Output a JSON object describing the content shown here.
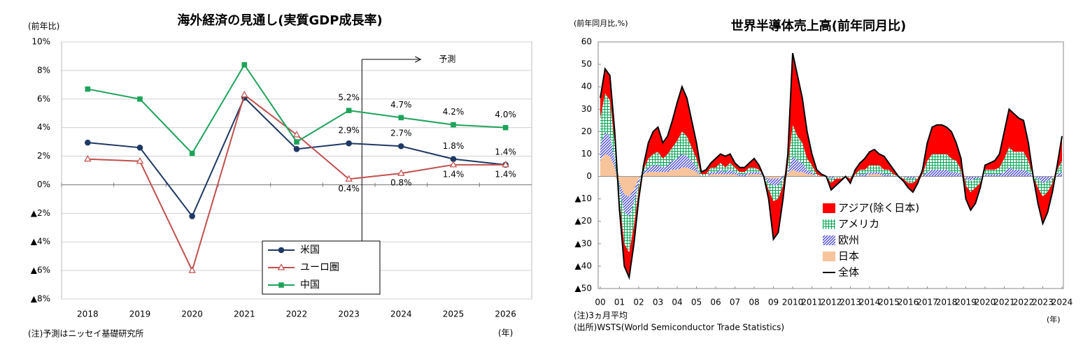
{
  "chart_data": [
    {
      "type": "line",
      "title": "海外経済の見通し(実質GDP成長率)",
      "y_label": "(前年比)",
      "x_label": "(年)",
      "note": "(注)予測はニッセイ基礎研究所",
      "annotation": "予測",
      "categories": [
        "2018",
        "2019",
        "2020",
        "2021",
        "2022",
        "2023",
        "2024",
        "2025",
        "2026"
      ],
      "ylim": [
        -8,
        10
      ],
      "yticks": [
        {
          "value": -8,
          "label": "▲8%"
        },
        {
          "value": -6,
          "label": "▲6%"
        },
        {
          "value": -4,
          "label": "▲4%"
        },
        {
          "value": -2,
          "label": "▲2%"
        },
        {
          "value": 0,
          "label": "0%"
        },
        {
          "value": 2,
          "label": "2%"
        },
        {
          "value": 4,
          "label": "4%"
        },
        {
          "value": 6,
          "label": "6%"
        },
        {
          "value": 8,
          "label": "8%"
        },
        {
          "value": 10,
          "label": "10%"
        }
      ],
      "grid": true,
      "legend": "lower center",
      "series": [
        {
          "name": "米国",
          "color": "#1f3864",
          "marker": "circle",
          "values": [
            2.95,
            2.6,
            -2.2,
            6.1,
            2.5,
            2.9,
            2.7,
            1.8,
            1.4
          ],
          "value_labels": [
            null,
            null,
            null,
            null,
            null,
            "2.9%",
            "2.7%",
            "1.8%",
            "1.4%"
          ]
        },
        {
          "name": "ユーロ圏",
          "color": "#c0504d",
          "marker": "triangle-open",
          "values": [
            1.8,
            1.65,
            -6.0,
            6.3,
            3.5,
            0.4,
            0.8,
            1.4,
            1.4
          ],
          "value_labels": [
            null,
            null,
            null,
            null,
            null,
            "0.4%",
            "0.8%",
            "1.4%",
            "1.4%"
          ]
        },
        {
          "name": "中国",
          "color": "#1ea35a",
          "marker": "square",
          "values": [
            6.7,
            6.0,
            2.2,
            8.4,
            3.0,
            5.2,
            4.7,
            4.2,
            4.0
          ],
          "value_labels": [
            null,
            null,
            null,
            null,
            null,
            "5.2%",
            "4.7%",
            "4.2%",
            "4.0%"
          ]
        }
      ]
    },
    {
      "type": "stacked_area",
      "title": "世界半導体売上高(前年同月比)",
      "y_label": "(前年同月比,%)",
      "x_label": "(年)",
      "notes": [
        "(注)3ヵ月平均",
        "(出所)WSTS(World Semiconductor Trade Statistics)"
      ],
      "xlim": [
        2000,
        2024
      ],
      "ylim": [
        -50,
        60
      ],
      "xticks": [
        {
          "value": 2000,
          "label": "00"
        },
        {
          "value": 2001,
          "label": "01"
        },
        {
          "value": 2002,
          "label": "02"
        },
        {
          "value": 2003,
          "label": "03"
        },
        {
          "value": 2004,
          "label": "04"
        },
        {
          "value": 2005,
          "label": "05"
        },
        {
          "value": 2006,
          "label": "06"
        },
        {
          "value": 2007,
          "label": "07"
        },
        {
          "value": 2008,
          "label": "08"
        },
        {
          "value": 2009,
          "label": "09"
        },
        2010,
        2011,
        2012,
        2013,
        2014,
        2015,
        2016,
        2017,
        2018,
        2019,
        2020,
        2021,
        2022,
        2023,
        2024
      ],
      "yticks": [
        {
          "value": -50,
          "label": "▲50"
        },
        {
          "value": -40,
          "label": "▲40"
        },
        {
          "value": -30,
          "label": "▲30"
        },
        {
          "value": -20,
          "label": "▲20"
        },
        {
          "value": -10,
          "label": "▲10"
        },
        0,
        10,
        20,
        30,
        40,
        50,
        60
      ],
      "legend": "lower center",
      "x": [
        2000,
        2000.25,
        2000.5,
        2000.75,
        2001,
        2001.25,
        2001.5,
        2001.75,
        2002,
        2002.25,
        2002.5,
        2002.75,
        2003,
        2003.25,
        2003.5,
        2003.75,
        2004,
        2004.25,
        2004.5,
        2004.75,
        2005,
        2005.25,
        2005.5,
        2005.75,
        2006,
        2006.25,
        2006.5,
        2006.75,
        2007,
        2007.25,
        2007.5,
        2007.75,
        2008,
        2008.25,
        2008.5,
        2008.75,
        2009,
        2009.25,
        2009.5,
        2009.75,
        2010,
        2010.25,
        2010.5,
        2010.75,
        2011,
        2011.25,
        2011.5,
        2011.75,
        2012,
        2012.25,
        2012.5,
        2012.75,
        2013,
        2013.25,
        2013.5,
        2013.75,
        2014,
        2014.25,
        2014.5,
        2014.75,
        2015,
        2015.25,
        2015.5,
        2015.75,
        2016,
        2016.25,
        2016.5,
        2016.75,
        2017,
        2017.25,
        2017.5,
        2017.75,
        2018,
        2018.25,
        2018.5,
        2018.75,
        2019,
        2019.25,
        2019.5,
        2019.75,
        2020,
        2020.25,
        2020.5,
        2020.75,
        2021,
        2021.25,
        2021.5,
        2021.75,
        2022,
        2022.25,
        2022.5,
        2022.75,
        2023,
        2023.25,
        2023.5,
        2023.75,
        2024
      ],
      "series": [
        {
          "name": "アジア(除く日本)",
          "color": "#ff0000",
          "pattern": "solid",
          "values": [
            9,
            11,
            11,
            5,
            -4,
            -10,
            -11,
            -8,
            -4,
            2,
            7,
            10,
            11,
            7,
            8,
            12,
            17,
            20,
            17,
            12,
            7,
            1,
            2,
            2,
            4,
            4,
            5,
            4,
            2,
            2,
            2,
            2,
            4,
            2,
            0,
            -4,
            -17,
            -15,
            -6,
            5,
            32,
            27,
            20,
            12,
            5,
            2,
            1,
            0,
            -3,
            -3,
            -1,
            0,
            -2,
            2,
            3,
            5,
            6,
            7,
            5,
            6,
            3,
            2,
            0,
            -1,
            -2,
            -4,
            -2,
            2,
            8,
            12,
            13,
            13,
            12,
            12,
            8,
            5,
            -6,
            -8,
            -7,
            -2,
            2,
            3,
            4,
            6,
            12,
            17,
            17,
            15,
            14,
            8,
            0,
            -7,
            -12,
            -9,
            -4,
            2,
            11
          ]
        },
        {
          "name": "アメリカ",
          "color": "#00a651",
          "pattern": "grid",
          "values": [
            12,
            17,
            16,
            7,
            -5,
            -14,
            -16,
            -10,
            -3,
            1,
            4,
            5,
            6,
            4,
            5,
            6,
            8,
            10,
            9,
            6,
            4,
            1,
            1,
            2,
            2,
            3,
            2,
            3,
            2,
            1,
            1,
            2,
            2,
            1,
            0,
            -3,
            -7,
            -6,
            -3,
            3,
            14,
            11,
            9,
            5,
            3,
            1,
            0,
            0,
            -2,
            -1,
            -1,
            0,
            -1,
            1,
            2,
            2,
            3,
            3,
            3,
            2,
            2,
            1,
            0,
            -1,
            -2,
            -2,
            -1,
            1,
            5,
            7,
            7,
            7,
            7,
            6,
            5,
            2,
            -3,
            -5,
            -4,
            -2,
            2,
            2,
            2,
            3,
            6,
            9,
            8,
            8,
            8,
            5,
            0,
            -4,
            -6,
            -5,
            -2,
            2,
            5
          ]
        },
        {
          "name": "欧州",
          "color": "#3b3bd4",
          "pattern": "diagonal",
          "values": [
            7,
            10,
            9,
            4,
            -3,
            -8,
            -9,
            -6,
            -2,
            1,
            2,
            3,
            3,
            2,
            3,
            4,
            5,
            6,
            5,
            4,
            2,
            0,
            0,
            1,
            1,
            2,
            1,
            2,
            1,
            1,
            1,
            1,
            1,
            1,
            0,
            -2,
            -3,
            -3,
            -1,
            1,
            6,
            5,
            4,
            2,
            1,
            0,
            0,
            0,
            -1,
            0,
            0,
            0,
            0,
            0,
            1,
            1,
            1,
            1,
            1,
            1,
            1,
            0,
            0,
            0,
            -1,
            -1,
            0,
            0,
            2,
            3,
            3,
            3,
            3,
            2,
            2,
            1,
            -1,
            -2,
            -1,
            -1,
            1,
            1,
            1,
            1,
            2,
            4,
            3,
            3,
            3,
            2,
            0,
            -1,
            -3,
            -2,
            -1,
            1,
            2
          ]
        },
        {
          "name": "日本",
          "color": "#f8c49c",
          "pattern": "solid",
          "values": [
            7,
            10,
            9,
            4,
            -3,
            -8,
            -9,
            -6,
            -1,
            1,
            2,
            2,
            2,
            2,
            2,
            3,
            3,
            4,
            4,
            3,
            2,
            0,
            0,
            1,
            1,
            1,
            1,
            1,
            1,
            0,
            0,
            1,
            1,
            1,
            0,
            -1,
            -1,
            -1,
            0,
            1,
            3,
            2,
            2,
            1,
            1,
            0,
            0,
            0,
            0,
            0,
            0,
            0,
            0,
            0,
            0,
            0,
            1,
            1,
            1,
            0,
            0,
            0,
            0,
            0,
            0,
            0,
            0,
            0,
            0,
            0,
            0,
            0,
            0,
            0,
            0,
            0,
            0,
            0,
            0,
            0,
            0,
            0,
            0,
            0,
            0,
            0,
            0,
            0,
            0,
            0,
            0,
            0,
            0,
            0,
            0,
            0,
            0
          ]
        },
        {
          "name": "全体",
          "color": "#000000",
          "type": "line",
          "values": [
            35,
            48,
            45,
            20,
            -15,
            -40,
            -45,
            -30,
            -10,
            5,
            15,
            20,
            22,
            15,
            18,
            25,
            33,
            40,
            35,
            25,
            15,
            2,
            3,
            6,
            8,
            10,
            9,
            10,
            6,
            4,
            4,
            6,
            8,
            5,
            0,
            -10,
            -28,
            -25,
            -10,
            10,
            55,
            45,
            35,
            20,
            10,
            3,
            1,
            0,
            -6,
            -4,
            -2,
            0,
            -3,
            3,
            6,
            8,
            11,
            12,
            10,
            9,
            6,
            3,
            0,
            -2,
            -5,
            -7,
            -3,
            3,
            15,
            22,
            23,
            23,
            22,
            20,
            15,
            8,
            -10,
            -15,
            -12,
            -5,
            5,
            6,
            7,
            10,
            20,
            30,
            28,
            26,
            25,
            15,
            0,
            -12,
            -21,
            -16,
            -7,
            5,
            18
          ]
        }
      ]
    }
  ]
}
